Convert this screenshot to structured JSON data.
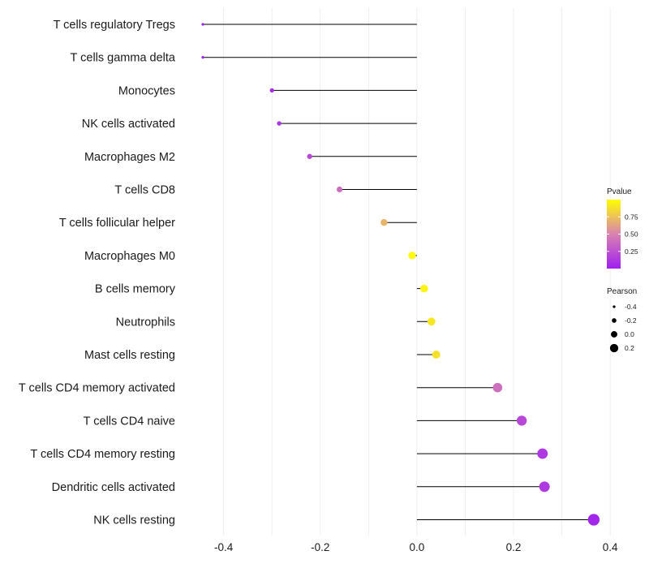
{
  "chart_data": {
    "type": "lollipop",
    "title": "",
    "xlabel": "",
    "ylabel": "",
    "xlim": [
      -0.48,
      0.43
    ],
    "x_ticks": [
      -0.4,
      -0.2,
      0.0,
      0.2,
      0.4
    ],
    "x_tick_labels": [
      "-0.4",
      "-0.2",
      "0.0",
      "0.2",
      "0.4"
    ],
    "grid": "vertical",
    "categories": [
      "T cells regulatory  Tregs",
      "T cells gamma delta",
      "Monocytes",
      "NK cells activated",
      "Macrophages M2",
      "T cells CD8",
      "T cells follicular helper",
      "Macrophages M0",
      "B cells memory",
      "Neutrophils",
      "Mast cells resting",
      "T cells CD4 memory activated",
      "T cells CD4 naive",
      "T cells CD4 memory resting",
      "Dendritic cells activated",
      "NK cells resting"
    ],
    "pearson": [
      -0.443,
      -0.443,
      -0.3,
      -0.285,
      -0.222,
      -0.16,
      -0.068,
      -0.01,
      0.015,
      0.03,
      0.04,
      0.167,
      0.217,
      0.26,
      0.264,
      0.366
    ],
    "pvalue": [
      0.0,
      0.0,
      0.06,
      0.09,
      0.2,
      0.4,
      0.7,
      0.98,
      0.95,
      0.9,
      0.88,
      0.4,
      0.2,
      0.12,
      0.12,
      0.03
    ],
    "legend": {
      "color": {
        "title": "Pvalue",
        "ticks": [
          0.75,
          0.5,
          0.25
        ],
        "tick_labels": [
          "0.75",
          "0.50",
          "0.25"
        ],
        "low_color": "#a020f0",
        "mid_color": "#d982b1",
        "high_color": "#ffff00"
      },
      "size": {
        "title": "Pearson",
        "values": [
          -0.4,
          -0.2,
          0.0,
          0.2
        ],
        "labels": [
          "-0.4",
          "-0.2",
          "0.0",
          "0.2"
        ]
      },
      "position": "right"
    },
    "segment_color": "#000000",
    "grid_color": "#ebebeb"
  }
}
